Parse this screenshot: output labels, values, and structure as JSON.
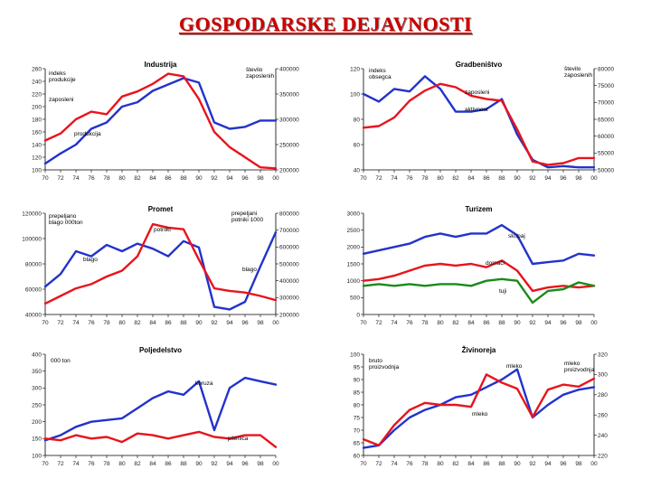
{
  "page": {
    "title": "GOSPODARSKE DEJAVNOSTI"
  },
  "colors": {
    "red": "#e8141c",
    "blue": "#2233cc",
    "green": "#1a8a1a",
    "axis": "#000000",
    "title": "#cc0000"
  },
  "chart_data": [
    {
      "id": "industrija",
      "type": "line",
      "title": "Industrija",
      "x": [
        70,
        72,
        74,
        76,
        78,
        80,
        82,
        84,
        86,
        88,
        90,
        92,
        94,
        96,
        98,
        100
      ],
      "xticks": [
        "70",
        "72",
        "74",
        "76",
        "78",
        "80",
        "82",
        "84",
        "86",
        "88",
        "90",
        "92",
        "94",
        "96",
        "98",
        "00"
      ],
      "ylim": [
        100,
        260
      ],
      "yticks": [
        "100",
        "120",
        "140",
        "160",
        "180",
        "200",
        "220",
        "240",
        "260"
      ],
      "ylim_right": [
        200000,
        400000
      ],
      "yticks_right": [
        "200000",
        "250000",
        "300000",
        "350000",
        "400000"
      ],
      "annotations": [
        "indeks produkcije",
        "zaposleni",
        "produkcija",
        "število zaposlenih"
      ],
      "series": [
        {
          "name": "produkcija",
          "color": "blue",
          "axis": "left",
          "values": [
            110,
            126,
            140,
            165,
            175,
            200,
            207,
            225,
            235,
            245,
            238,
            175,
            165,
            168,
            178,
            178
          ]
        },
        {
          "name": "zaposleni",
          "color": "red",
          "axis": "right",
          "values": [
            258000,
            272000,
            300000,
            315000,
            310000,
            345000,
            355000,
            370000,
            390000,
            385000,
            340000,
            275000,
            245000,
            225000,
            205000,
            203000
          ]
        }
      ]
    },
    {
      "id": "gradbenistvo",
      "type": "line",
      "title": "Gradbeništvo",
      "x": [
        70,
        72,
        74,
        76,
        78,
        80,
        82,
        84,
        86,
        88,
        90,
        92,
        94,
        96,
        98,
        100
      ],
      "xticks": [
        "70",
        "72",
        "74",
        "76",
        "78",
        "80",
        "82",
        "84",
        "86",
        "88",
        "90",
        "92",
        "94",
        "96",
        "98",
        "00"
      ],
      "ylim": [
        40,
        120
      ],
      "yticks": [
        "40",
        "60",
        "80",
        "100",
        "120"
      ],
      "ylim_right": [
        50000,
        80000
      ],
      "yticks_right": [
        "50000",
        "55000",
        "60000",
        "65000",
        "70000",
        "75000",
        "80000"
      ],
      "annotations": [
        "indeks obsegca",
        "zaposleni",
        "aktivnost",
        "število zaposlenih"
      ],
      "series": [
        {
          "name": "aktivnost",
          "color": "blue",
          "axis": "left",
          "values": [
            100,
            94,
            104,
            102,
            114,
            104,
            86,
            86,
            88,
            96,
            68,
            48,
            42,
            43,
            42,
            42
          ]
        },
        {
          "name": "zaposleni",
          "color": "red",
          "axis": "right",
          "values": [
            62500,
            63000,
            65500,
            70500,
            73500,
            75500,
            74500,
            72000,
            71000,
            70500,
            62000,
            52500,
            51500,
            52000,
            53500,
            53500
          ]
        }
      ]
    },
    {
      "id": "promet",
      "type": "line",
      "title": "Promet",
      "x": [
        70,
        72,
        74,
        76,
        78,
        80,
        82,
        84,
        86,
        88,
        90,
        92,
        94,
        96,
        98,
        100
      ],
      "xticks": [
        "70",
        "72",
        "74",
        "76",
        "78",
        "80",
        "82",
        "84",
        "86",
        "88",
        "90",
        "92",
        "94",
        "96",
        "98",
        "00"
      ],
      "ylim": [
        40000,
        120000
      ],
      "yticks": [
        "40000",
        "60000",
        "80000",
        "100000",
        "120000"
      ],
      "ylim_right": [
        200000,
        800000
      ],
      "yticks_right": [
        "200000",
        "300000",
        "400000",
        "500000",
        "600000",
        "700000",
        "800000"
      ],
      "annotations": [
        "prepeljano blago 000ton",
        "prepeljani potniki 1000",
        "potniki",
        "blago",
        "blago"
      ],
      "series": [
        {
          "name": "blago",
          "color": "blue",
          "axis": "left",
          "values": [
            62000,
            72000,
            90000,
            86000,
            95000,
            90000,
            96000,
            92000,
            86000,
            98000,
            93000,
            46000,
            44000,
            50000,
            78000,
            105000
          ]
        },
        {
          "name": "potniki",
          "color": "red",
          "axis": "right",
          "values": [
            265000,
            310000,
            355000,
            380000,
            425000,
            460000,
            545000,
            735000,
            715000,
            705000,
            525000,
            355000,
            340000,
            330000,
            310000,
            285000
          ]
        }
      ]
    },
    {
      "id": "turizem",
      "type": "line",
      "title": "Turizem",
      "x": [
        70,
        72,
        74,
        76,
        78,
        80,
        82,
        84,
        86,
        88,
        90,
        92,
        94,
        96,
        98,
        100
      ],
      "xticks": [
        "70",
        "72",
        "74",
        "76",
        "78",
        "80",
        "82",
        "84",
        "86",
        "88",
        "90",
        "92",
        "94",
        "96",
        "98",
        "00"
      ],
      "ylim": [
        0,
        3000
      ],
      "yticks": [
        "0",
        "500",
        "1000",
        "1500",
        "2000",
        "2500",
        "3000"
      ],
      "annotations": [
        "skupaj",
        "domači",
        "tuji"
      ],
      "series": [
        {
          "name": "skupaj",
          "color": "blue",
          "axis": "left",
          "values": [
            1800,
            1900,
            2000,
            2100,
            2300,
            2400,
            2300,
            2400,
            2400,
            2650,
            2350,
            1500,
            1550,
            1600,
            1800,
            1750
          ]
        },
        {
          "name": "domači",
          "color": "red",
          "axis": "left",
          "values": [
            1000,
            1050,
            1150,
            1300,
            1450,
            1500,
            1450,
            1500,
            1400,
            1600,
            1300,
            700,
            800,
            850,
            800,
            850
          ]
        },
        {
          "name": "tuji",
          "color": "green",
          "axis": "left",
          "values": [
            850,
            900,
            850,
            900,
            850,
            900,
            900,
            850,
            1000,
            1050,
            1000,
            350,
            700,
            750,
            950,
            850
          ]
        }
      ]
    },
    {
      "id": "poljedelstvo",
      "type": "line",
      "title": "Poljedelstvo",
      "x": [
        70,
        72,
        74,
        76,
        78,
        80,
        82,
        84,
        86,
        88,
        90,
        92,
        94,
        96,
        98,
        100
      ],
      "xticks": [
        "70",
        "72",
        "74",
        "76",
        "78",
        "80",
        "82",
        "84",
        "86",
        "88",
        "90",
        "92",
        "94",
        "96",
        "98",
        "00"
      ],
      "ylim": [
        100,
        400
      ],
      "yticks": [
        "100",
        "150",
        "200",
        "250",
        "300",
        "350",
        "400"
      ],
      "annotations": [
        "000 ton",
        "koruza",
        "pšenica"
      ],
      "series": [
        {
          "name": "koruza",
          "color": "blue",
          "axis": "left",
          "values": [
            145,
            160,
            185,
            200,
            205,
            210,
            240,
            270,
            290,
            280,
            320,
            175,
            300,
            330,
            320,
            310
          ]
        },
        {
          "name": "pšenica",
          "color": "red",
          "axis": "left",
          "values": [
            150,
            145,
            160,
            150,
            155,
            140,
            165,
            160,
            150,
            160,
            170,
            155,
            150,
            160,
            160,
            125
          ]
        }
      ]
    },
    {
      "id": "zivinoreja",
      "type": "line",
      "title": "Živinoreja",
      "x": [
        70,
        72,
        74,
        76,
        78,
        80,
        82,
        84,
        86,
        88,
        90,
        92,
        94,
        96,
        98,
        100
      ],
      "xticks": [
        "70",
        "72",
        "74",
        "76",
        "78",
        "80",
        "82",
        "84",
        "86",
        "88",
        "90",
        "92",
        "94",
        "96",
        "98",
        "00"
      ],
      "ylim": [
        60,
        100
      ],
      "yticks": [
        "60",
        "65",
        "70",
        "75",
        "80",
        "85",
        "90",
        "95",
        "100"
      ],
      "ylim_right": [
        220,
        320
      ],
      "yticks_right": [
        "220",
        "240",
        "260",
        "280",
        "300",
        "320"
      ],
      "annotations": [
        "bruto proizvodnja",
        "mleko",
        "mleko",
        "mleko proizvodnja"
      ],
      "series": [
        {
          "name": "mleko",
          "color": "blue",
          "axis": "left",
          "values": [
            63,
            64,
            70,
            75,
            78,
            80,
            83,
            84,
            87,
            90,
            94,
            75,
            80,
            84,
            86,
            87
          ]
        },
        {
          "name": "mleko",
          "color": "red",
          "axis": "right",
          "values": [
            236,
            230,
            250,
            265,
            272,
            270,
            270,
            268,
            300,
            292,
            286,
            258,
            285,
            290,
            288,
            296
          ]
        }
      ]
    }
  ]
}
